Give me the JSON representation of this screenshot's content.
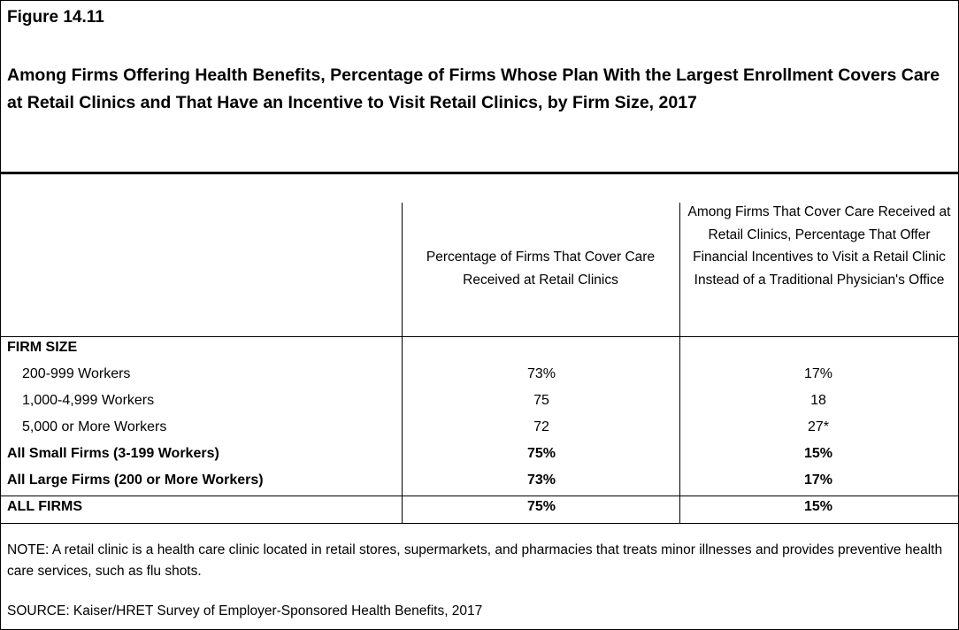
{
  "figure_label": "Figure 14.11",
  "title": "Among Firms Offering Health Benefits, Percentage of Firms Whose Plan With the Largest Enrollment Covers Care at Retail Clinics and That Have an Incentive to Visit Retail Clinics, by Firm Size, 2017",
  "chart_data": {
    "type": "table",
    "columns": [
      "",
      "Percentage of Firms That Cover Care Received at Retail Clinics",
      "Among Firms That Cover Care Received at Retail Clinics, Percentage That Offer Financial Incentives to Visit a Retail Clinic Instead of a Traditional Physician's Office"
    ],
    "section_label": "FIRM SIZE",
    "rows": [
      {
        "label": "200-999 Workers",
        "v1": "73%",
        "v2": "17%",
        "bold": false,
        "indent": true
      },
      {
        "label": "1,000-4,999 Workers",
        "v1": "75",
        "v2": "18",
        "bold": false,
        "indent": true
      },
      {
        "label": "5,000 or More Workers",
        "v1": "72",
        "v2": "27*",
        "bold": false,
        "indent": true
      },
      {
        "label": "All Small Firms (3-199 Workers)",
        "v1": "75%",
        "v2": "15%",
        "bold": true,
        "indent": false
      },
      {
        "label": "All Large Firms (200 or More Workers)",
        "v1": "73%",
        "v2": "17%",
        "bold": true,
        "indent": false
      },
      {
        "label": "ALL FIRMS",
        "v1": "75%",
        "v2": "15%",
        "bold": true,
        "indent": false
      }
    ]
  },
  "note": "NOTE: A retail clinic is a health care clinic located in retail stores, supermarkets, and pharmacies that treats minor illnesses and provides preventive health care services, such as flu shots.",
  "source": "SOURCE: Kaiser/HRET Survey of Employer-Sponsored Health Benefits, 2017"
}
